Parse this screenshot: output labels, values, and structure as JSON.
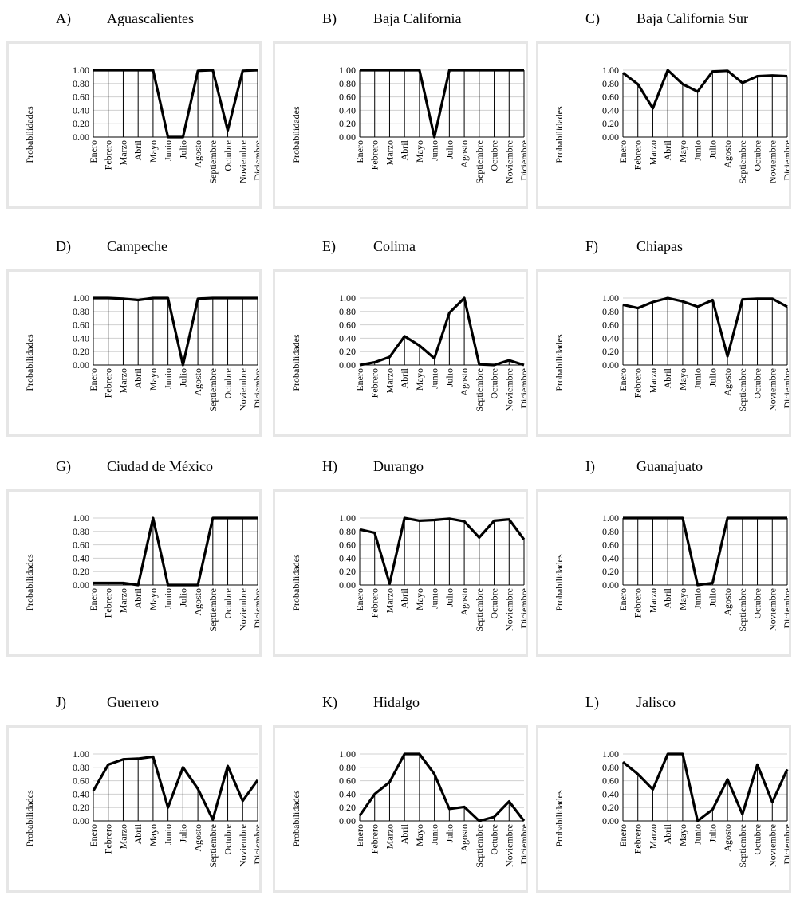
{
  "months": [
    "Enero",
    "Febrero",
    "Marzo",
    "Abril",
    "Mayo",
    "Junio",
    "Julio",
    "Agosto",
    "Septiembre",
    "Octubre",
    "Noviembre",
    "Diciembre"
  ],
  "chart_data": [
    {
      "type": "line",
      "letter": "A)",
      "title": "Aguascalientes",
      "ylabel": "Probabilidades",
      "ylim": [
        0,
        1
      ],
      "yticks": [
        "0.00",
        "0.20",
        "0.40",
        "0.60",
        "0.80",
        "1.00"
      ],
      "values": [
        1.0,
        1.0,
        1.0,
        1.0,
        1.0,
        0.0,
        0.0,
        0.99,
        1.0,
        0.1,
        0.99,
        1.0
      ]
    },
    {
      "type": "line",
      "letter": "B)",
      "title": "Baja California",
      "ylabel": "Probabilidades",
      "ylim": [
        0,
        1
      ],
      "yticks": [
        "0.00",
        "0.20",
        "0.40",
        "0.60",
        "0.80",
        "1.00"
      ],
      "values": [
        1.0,
        1.0,
        1.0,
        1.0,
        1.0,
        0.0,
        1.0,
        1.0,
        1.0,
        1.0,
        1.0,
        1.0
      ]
    },
    {
      "type": "line",
      "letter": "C)",
      "title": "Baja California Sur",
      "ylabel": "Probabilidades",
      "ylim": [
        0,
        1
      ],
      "yticks": [
        "0.00",
        "0.20",
        "0.40",
        "0.60",
        "0.80",
        "1.00"
      ],
      "values": [
        0.96,
        0.79,
        0.43,
        1.0,
        0.79,
        0.68,
        0.98,
        0.99,
        0.81,
        0.91,
        0.92,
        0.91
      ]
    },
    {
      "type": "line",
      "letter": "D)",
      "title": "Campeche",
      "ylabel": "Probabilidades",
      "ylim": [
        0,
        1
      ],
      "yticks": [
        "0.00",
        "0.20",
        "0.40",
        "0.60",
        "0.80",
        "1.00"
      ],
      "values": [
        1.0,
        1.0,
        0.99,
        0.97,
        1.0,
        1.0,
        0.0,
        0.99,
        1.0,
        1.0,
        1.0,
        1.0
      ]
    },
    {
      "type": "line",
      "letter": "E)",
      "title": "Colima",
      "ylabel": "Probabilidades",
      "ylim": [
        0,
        1
      ],
      "yticks": [
        "0.00",
        "0.20",
        "0.40",
        "0.60",
        "0.80",
        "1.00"
      ],
      "values": [
        0.0,
        0.04,
        0.12,
        0.43,
        0.29,
        0.1,
        0.78,
        1.0,
        0.01,
        0.0,
        0.07,
        0.0
      ]
    },
    {
      "type": "line",
      "letter": "F)",
      "title": "Chiapas",
      "ylabel": "Probabilidades",
      "ylim": [
        0,
        1
      ],
      "yticks": [
        "0.00",
        "0.20",
        "0.40",
        "0.60",
        "0.80",
        "1.00"
      ],
      "values": [
        0.9,
        0.85,
        0.94,
        1.0,
        0.95,
        0.87,
        0.97,
        0.13,
        0.98,
        0.99,
        0.99,
        0.87
      ]
    },
    {
      "type": "line",
      "letter": "G)",
      "title": "Ciudad de México",
      "ylabel": "Probabilidades",
      "ylim": [
        0,
        1
      ],
      "yticks": [
        "0.00",
        "0.20",
        "0.40",
        "0.60",
        "0.80",
        "1.00"
      ],
      "values": [
        0.03,
        0.03,
        0.03,
        0.0,
        1.0,
        0.0,
        0.0,
        0.0,
        1.0,
        1.0,
        1.0,
        1.0
      ]
    },
    {
      "type": "line",
      "letter": "H)",
      "title": "Durango",
      "ylabel": "Probabilidades",
      "ylim": [
        0,
        1
      ],
      "yticks": [
        "0.00",
        "0.20",
        "0.40",
        "0.60",
        "0.80",
        "1.00"
      ],
      "values": [
        0.83,
        0.78,
        0.02,
        1.0,
        0.96,
        0.97,
        0.99,
        0.95,
        0.71,
        0.96,
        0.98,
        0.68
      ]
    },
    {
      "type": "line",
      "letter": "I)",
      "title": "Guanajuato",
      "ylabel": "Probabilidades",
      "ylim": [
        0,
        1
      ],
      "yticks": [
        "0.00",
        "0.20",
        "0.40",
        "0.60",
        "0.80",
        "1.00"
      ],
      "values": [
        1.0,
        1.0,
        1.0,
        1.0,
        1.0,
        0.0,
        0.03,
        1.0,
        1.0,
        1.0,
        1.0,
        1.0
      ]
    },
    {
      "type": "line",
      "letter": "J)",
      "title": "Guerrero",
      "ylabel": "Probabilidades",
      "ylim": [
        0,
        1
      ],
      "yticks": [
        "0.00",
        "0.20",
        "0.40",
        "0.60",
        "0.80",
        "1.00"
      ],
      "values": [
        0.45,
        0.84,
        0.92,
        0.93,
        0.96,
        0.2,
        0.8,
        0.48,
        0.02,
        0.82,
        0.3,
        0.61
      ]
    },
    {
      "type": "line",
      "letter": "K)",
      "title": "Hidalgo",
      "ylabel": "Probabilidades",
      "ylim": [
        0,
        1
      ],
      "yticks": [
        "0.00",
        "0.20",
        "0.40",
        "0.60",
        "0.80",
        "1.00"
      ],
      "values": [
        0.08,
        0.4,
        0.58,
        1.0,
        1.0,
        0.7,
        0.18,
        0.21,
        0.0,
        0.06,
        0.29,
        0.0
      ]
    },
    {
      "type": "line",
      "letter": "L)",
      "title": "Jalisco",
      "ylabel": "Probabilidades",
      "ylim": [
        0,
        1
      ],
      "yticks": [
        "0.00",
        "0.20",
        "0.40",
        "0.60",
        "0.80",
        "1.00"
      ],
      "values": [
        0.88,
        0.7,
        0.47,
        1.0,
        1.0,
        0.0,
        0.17,
        0.62,
        0.1,
        0.84,
        0.28,
        0.77
      ]
    }
  ]
}
